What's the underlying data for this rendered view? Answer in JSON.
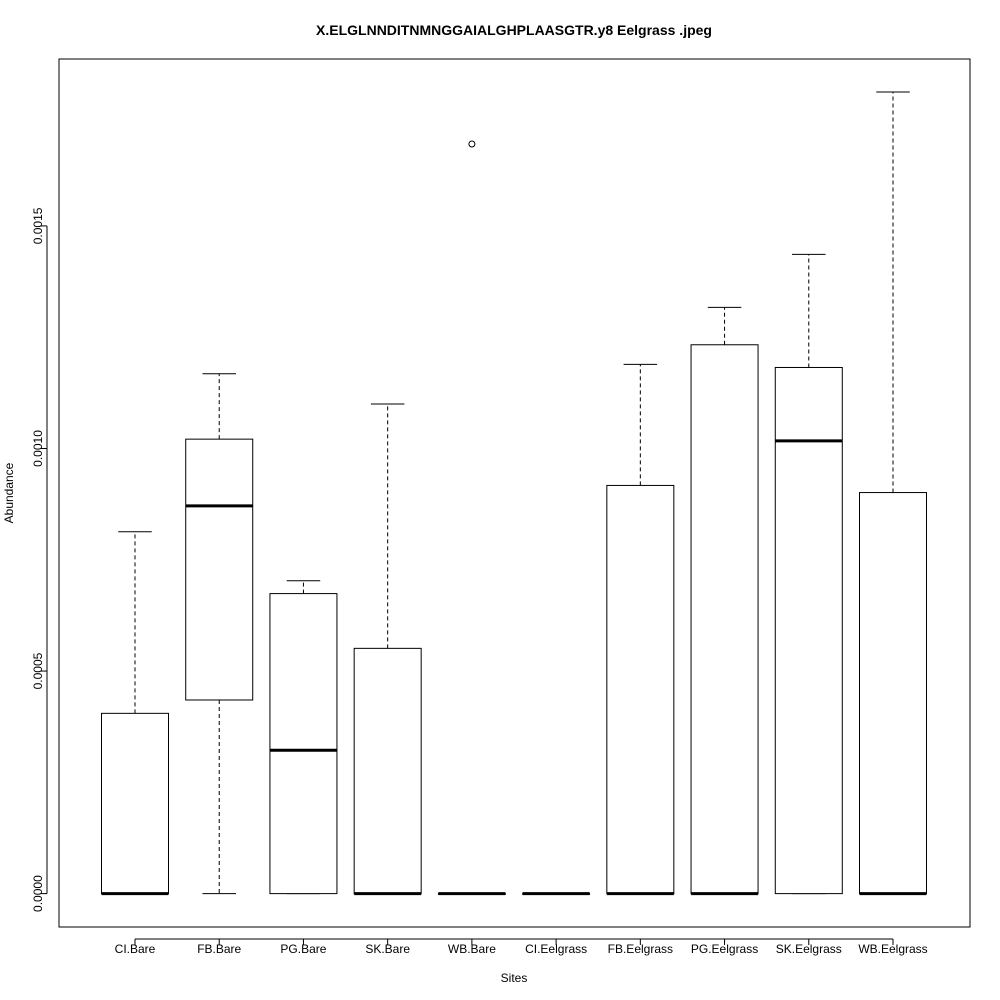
{
  "chart_data": {
    "type": "boxplot",
    "title": "X.ELGLNNDITNMNGGAIALGHPLAASGTR.y8 Eelgrass .jpeg",
    "xlabel": "Sites",
    "ylabel": "Abundance",
    "ylim": [
      -7.5e-05,
      0.001875
    ],
    "yticks": [
      "0.0000",
      "0.0005",
      "0.0010",
      "0.0015"
    ],
    "grid": false,
    "legend": "none",
    "categories": [
      "CI.Bare",
      "FB.Bare",
      "PG.Bare",
      "SK.Bare",
      "WB.Bare",
      "CI.Eelgrass",
      "FB.Eelgrass",
      "PG.Eelgrass",
      "SK.Eelgrass",
      "WB.Eelgrass"
    ],
    "boxes": [
      {
        "whisker_low": 0.0,
        "q1": 0.0,
        "median": 0.0,
        "q3": 0.000405,
        "whisker_high": 0.000813,
        "outliers": []
      },
      {
        "whisker_low": 0.0,
        "q1": 0.000435,
        "median": 0.000871,
        "q3": 0.001021,
        "whisker_high": 0.001168,
        "outliers": []
      },
      {
        "whisker_low": 0.0,
        "q1": 0.0,
        "median": 0.000322,
        "q3": 0.000674,
        "whisker_high": 0.000703,
        "outliers": []
      },
      {
        "whisker_low": 0.0,
        "q1": 0.0,
        "median": 0.0,
        "q3": 0.000551,
        "whisker_high": 0.0011,
        "outliers": []
      },
      {
        "whisker_low": 0.0,
        "q1": 0.0,
        "median": 0.0,
        "q3": 0.0,
        "whisker_high": 0.0,
        "outliers": [
          0.001684
        ]
      },
      {
        "whisker_low": 0.0,
        "q1": 0.0,
        "median": 0.0,
        "q3": 0.0,
        "whisker_high": 0.0,
        "outliers": []
      },
      {
        "whisker_low": 0.0,
        "q1": 0.0,
        "median": 0.0,
        "q3": 0.000917,
        "whisker_high": 0.001189,
        "outliers": []
      },
      {
        "whisker_low": 0.0,
        "q1": 0.0,
        "median": 0.0,
        "q3": 0.001233,
        "whisker_high": 0.001317,
        "outliers": []
      },
      {
        "whisker_low": 0.0,
        "q1": 0.0,
        "median": 0.001017,
        "q3": 0.001182,
        "whisker_high": 0.001436,
        "outliers": []
      },
      {
        "whisker_low": 0.0,
        "q1": 0.0,
        "median": 0.0,
        "q3": 0.000901,
        "whisker_high": 0.001801,
        "outliers": []
      }
    ]
  }
}
